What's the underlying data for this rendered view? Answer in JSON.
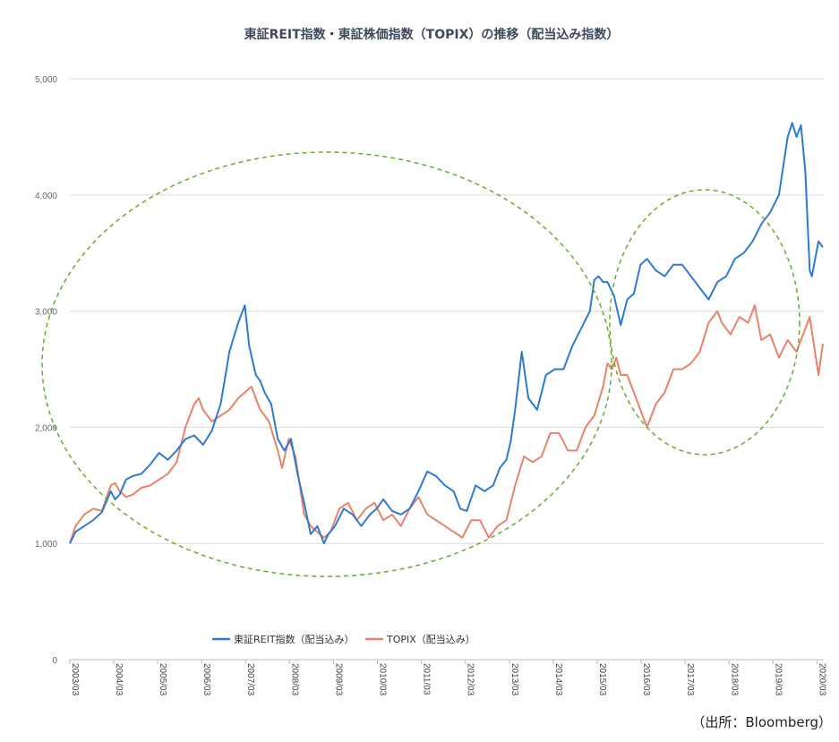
{
  "chart_data": {
    "type": "line",
    "title": "東証REIT指数・東証株価指数（TOPIX）の推移（配当込み指数）",
    "ylim": [
      0,
      5000
    ],
    "y_ticks": [
      0,
      1000,
      2000,
      3000,
      4000,
      5000
    ],
    "y_tick_labels": [
      "0",
      "1,000",
      "2,000",
      "3,000",
      "4,000",
      "5,000"
    ],
    "x_ticks": [
      "2003/03",
      "2004/03",
      "2005/03",
      "2006/03",
      "2007/03",
      "2008/03",
      "2009/03",
      "2010/03",
      "2011/03",
      "2012/03",
      "2013/03",
      "2014/03",
      "2015/03",
      "2016/03",
      "2017/03",
      "2018/03",
      "2019/03",
      "2020/03"
    ],
    "grid": true,
    "legend_position": "bottom",
    "colors": {
      "reit": "#2e7ad1",
      "topix": "#e8826a",
      "annotation": "#6aaa2f"
    },
    "series": [
      {
        "name": "東証REIT指数（配当込み）",
        "color": "#2e7ad1",
        "x": [
          2003.17,
          2003.3,
          2003.5,
          2003.7,
          2003.9,
          2004.1,
          2004.2,
          2004.3,
          2004.45,
          2004.6,
          2004.8,
          2005.0,
          2005.2,
          2005.4,
          2005.6,
          2005.8,
          2006.0,
          2006.2,
          2006.4,
          2006.6,
          2006.8,
          2007.0,
          2007.15,
          2007.25,
          2007.4,
          2007.5,
          2007.6,
          2007.75,
          2007.9,
          2008.05,
          2008.2,
          2008.35,
          2008.5,
          2008.65,
          2008.8,
          2008.95,
          2009.05,
          2009.2,
          2009.4,
          2009.6,
          2009.8,
          2010.0,
          2010.15,
          2010.3,
          2010.5,
          2010.7,
          2010.9,
          2011.1,
          2011.3,
          2011.5,
          2011.7,
          2011.9,
          2012.05,
          2012.2,
          2012.4,
          2012.6,
          2012.8,
          2012.95,
          2013.1,
          2013.2,
          2013.3,
          2013.45,
          2013.6,
          2013.8,
          2014.0,
          2014.2,
          2014.4,
          2014.6,
          2014.8,
          2015.0,
          2015.1,
          2015.2,
          2015.3,
          2015.4,
          2015.55,
          2015.7,
          2015.85,
          2016.0,
          2016.15,
          2016.3,
          2016.5,
          2016.7,
          2016.9,
          2017.1,
          2017.3,
          2017.5,
          2017.7,
          2017.9,
          2018.1,
          2018.3,
          2018.5,
          2018.7,
          2018.9,
          2019.1,
          2019.3,
          2019.5,
          2019.6,
          2019.7,
          2019.8,
          2019.9,
          2020.0,
          2020.05,
          2020.2,
          2020.3
        ],
        "values": [
          1000,
          1100,
          1150,
          1200,
          1270,
          1450,
          1380,
          1420,
          1550,
          1580,
          1600,
          1680,
          1780,
          1720,
          1800,
          1900,
          1930,
          1850,
          1970,
          2200,
          2650,
          2900,
          3050,
          2700,
          2450,
          2400,
          2300,
          2200,
          1900,
          1800,
          1900,
          1600,
          1350,
          1080,
          1150,
          1000,
          1080,
          1150,
          1300,
          1250,
          1150,
          1250,
          1300,
          1380,
          1280,
          1250,
          1300,
          1450,
          1620,
          1580,
          1500,
          1450,
          1300,
          1280,
          1500,
          1450,
          1500,
          1650,
          1720,
          1880,
          2150,
          2650,
          2250,
          2150,
          2450,
          2500,
          2500,
          2700,
          2850,
          3000,
          3270,
          3300,
          3250,
          3250,
          3130,
          2880,
          3100,
          3150,
          3400,
          3450,
          3350,
          3300,
          3400,
          3400,
          3300,
          3200,
          3100,
          3250,
          3300,
          3450,
          3500,
          3600,
          3750,
          3850,
          4000,
          4500,
          4620,
          4500,
          4600,
          4200,
          3350,
          3300,
          3600,
          3550
        ]
      },
      {
        "name": "TOPIX（配当込み）",
        "color": "#e8826a",
        "x": [
          2003.17,
          2003.3,
          2003.5,
          2003.7,
          2003.9,
          2004.1,
          2004.2,
          2004.3,
          2004.45,
          2004.6,
          2004.8,
          2005.0,
          2005.2,
          2005.4,
          2005.6,
          2005.8,
          2006.0,
          2006.1,
          2006.2,
          2006.4,
          2006.6,
          2006.8,
          2007.0,
          2007.15,
          2007.3,
          2007.5,
          2007.7,
          2007.9,
          2008.0,
          2008.15,
          2008.3,
          2008.5,
          2008.65,
          2008.8,
          2008.95,
          2009.1,
          2009.3,
          2009.5,
          2009.7,
          2009.9,
          2010.1,
          2010.3,
          2010.5,
          2010.7,
          2010.9,
          2011.1,
          2011.3,
          2011.5,
          2011.7,
          2011.9,
          2012.1,
          2012.3,
          2012.5,
          2012.7,
          2012.9,
          2013.1,
          2013.3,
          2013.5,
          2013.7,
          2013.9,
          2014.1,
          2014.3,
          2014.5,
          2014.7,
          2014.9,
          2015.1,
          2015.3,
          2015.4,
          2015.5,
          2015.6,
          2015.7,
          2015.85,
          2016.0,
          2016.15,
          2016.3,
          2016.5,
          2016.7,
          2016.9,
          2017.1,
          2017.3,
          2017.5,
          2017.7,
          2017.9,
          2018.0,
          2018.2,
          2018.4,
          2018.6,
          2018.75,
          2018.9,
          2019.1,
          2019.3,
          2019.5,
          2019.7,
          2019.85,
          2020.0,
          2020.1,
          2020.2,
          2020.3
        ],
        "values": [
          1000,
          1150,
          1250,
          1300,
          1280,
          1500,
          1520,
          1450,
          1400,
          1420,
          1480,
          1500,
          1550,
          1600,
          1700,
          2000,
          2200,
          2250,
          2150,
          2050,
          2100,
          2150,
          2250,
          2300,
          2350,
          2150,
          2050,
          1800,
          1650,
          1900,
          1750,
          1250,
          1150,
          1100,
          1050,
          1100,
          1300,
          1350,
          1200,
          1300,
          1350,
          1200,
          1250,
          1150,
          1300,
          1400,
          1250,
          1200,
          1150,
          1100,
          1050,
          1200,
          1200,
          1050,
          1150,
          1200,
          1500,
          1750,
          1700,
          1750,
          1950,
          1950,
          1800,
          1800,
          2000,
          2100,
          2350,
          2550,
          2500,
          2600,
          2450,
          2450,
          2300,
          2150,
          2000,
          2200,
          2300,
          2500,
          2500,
          2550,
          2650,
          2900,
          3000,
          2900,
          2800,
          2950,
          2900,
          3050,
          2750,
          2800,
          2600,
          2750,
          2650,
          2800,
          2950,
          2700,
          2450,
          2720
        ]
      }
    ]
  },
  "annotations": {
    "ellipses": 2,
    "style": "dashed-green"
  },
  "source": "（出所：Bloomberg）"
}
